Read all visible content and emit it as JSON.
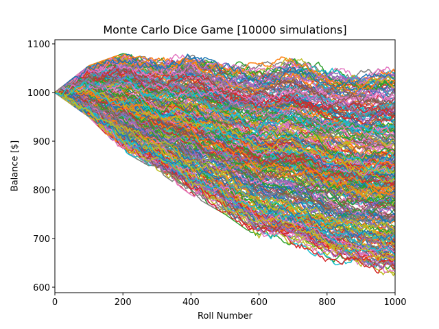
{
  "chart_data": {
    "type": "line",
    "title": "Monte Carlo Dice Game [10000 simulations]",
    "xlabel": "Roll Number",
    "ylabel": "Balance [$]",
    "xlim": [
      0,
      1000
    ],
    "ylim": [
      590,
      1110
    ],
    "xticks": [
      0,
      200,
      400,
      600,
      800,
      1000
    ],
    "yticks": [
      600,
      700,
      800,
      900,
      1000,
      1100
    ],
    "grid": false,
    "legend": null,
    "n_simulations": 10000,
    "starting_balance": 1000,
    "series_envelope": {
      "x": [
        0,
        100,
        200,
        300,
        400,
        500,
        600,
        700,
        800,
        900,
        1000
      ],
      "max": [
        1000,
        1055,
        1080,
        1070,
        1085,
        1065,
        1060,
        1080,
        1060,
        1050,
        1060
      ],
      "min": [
        1000,
        950,
        880,
        840,
        790,
        750,
        700,
        680,
        650,
        630,
        615
      ]
    },
    "color_cycle": [
      "#1f77b4",
      "#ff7f0e",
      "#2ca02c",
      "#d62728",
      "#9467bd",
      "#8c564b",
      "#e377c2",
      "#7f7f7f",
      "#bcbd22",
      "#17becf"
    ]
  }
}
